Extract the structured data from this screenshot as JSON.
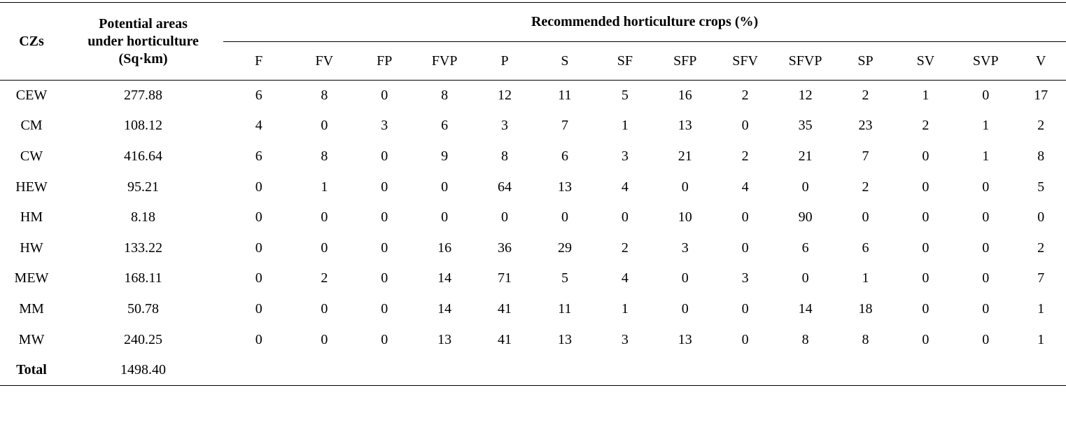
{
  "table": {
    "header": {
      "czs_label": "CZs",
      "area_label_lines": [
        "Potential areas",
        "under horticulture",
        "(Sq·km)"
      ],
      "crops_group_label": "Recommended horticulture crops (%)",
      "crop_columns": [
        "F",
        "FV",
        "FP",
        "FVP",
        "P",
        "S",
        "SF",
        "SFP",
        "SFV",
        "SFVP",
        "SP",
        "SV",
        "SVP",
        "V"
      ]
    },
    "rows": [
      {
        "cz": "CEW",
        "area": "277.88",
        "values": [
          "6",
          "8",
          "0",
          "8",
          "12",
          "11",
          "5",
          "16",
          "2",
          "12",
          "2",
          "1",
          "0",
          "17"
        ]
      },
      {
        "cz": "CM",
        "area": "108.12",
        "values": [
          "4",
          "0",
          "3",
          "6",
          "3",
          "7",
          "1",
          "13",
          "0",
          "35",
          "23",
          "2",
          "1",
          "2"
        ]
      },
      {
        "cz": "CW",
        "area": "416.64",
        "values": [
          "6",
          "8",
          "0",
          "9",
          "8",
          "6",
          "3",
          "21",
          "2",
          "21",
          "7",
          "0",
          "1",
          "8"
        ]
      },
      {
        "cz": "HEW",
        "area": "95.21",
        "values": [
          "0",
          "1",
          "0",
          "0",
          "64",
          "13",
          "4",
          "0",
          "4",
          "0",
          "2",
          "0",
          "0",
          "5"
        ]
      },
      {
        "cz": "HM",
        "area": "8.18",
        "values": [
          "0",
          "0",
          "0",
          "0",
          "0",
          "0",
          "0",
          "10",
          "0",
          "90",
          "0",
          "0",
          "0",
          "0"
        ]
      },
      {
        "cz": "HW",
        "area": "133.22",
        "values": [
          "0",
          "0",
          "0",
          "16",
          "36",
          "29",
          "2",
          "3",
          "0",
          "6",
          "6",
          "0",
          "0",
          "2"
        ]
      },
      {
        "cz": "MEW",
        "area": "168.11",
        "values": [
          "0",
          "2",
          "0",
          "14",
          "71",
          "5",
          "4",
          "0",
          "3",
          "0",
          "1",
          "0",
          "0",
          "7"
        ]
      },
      {
        "cz": "MM",
        "area": "50.78",
        "values": [
          "0",
          "0",
          "0",
          "14",
          "41",
          "11",
          "1",
          "0",
          "0",
          "14",
          "18",
          "0",
          "0",
          "1"
        ]
      },
      {
        "cz": "MW",
        "area": "240.25",
        "values": [
          "0",
          "0",
          "0",
          "13",
          "41",
          "13",
          "3",
          "13",
          "0",
          "8",
          "8",
          "0",
          "0",
          "1"
        ]
      }
    ],
    "total": {
      "label": "Total",
      "area": "1498.40"
    }
  }
}
